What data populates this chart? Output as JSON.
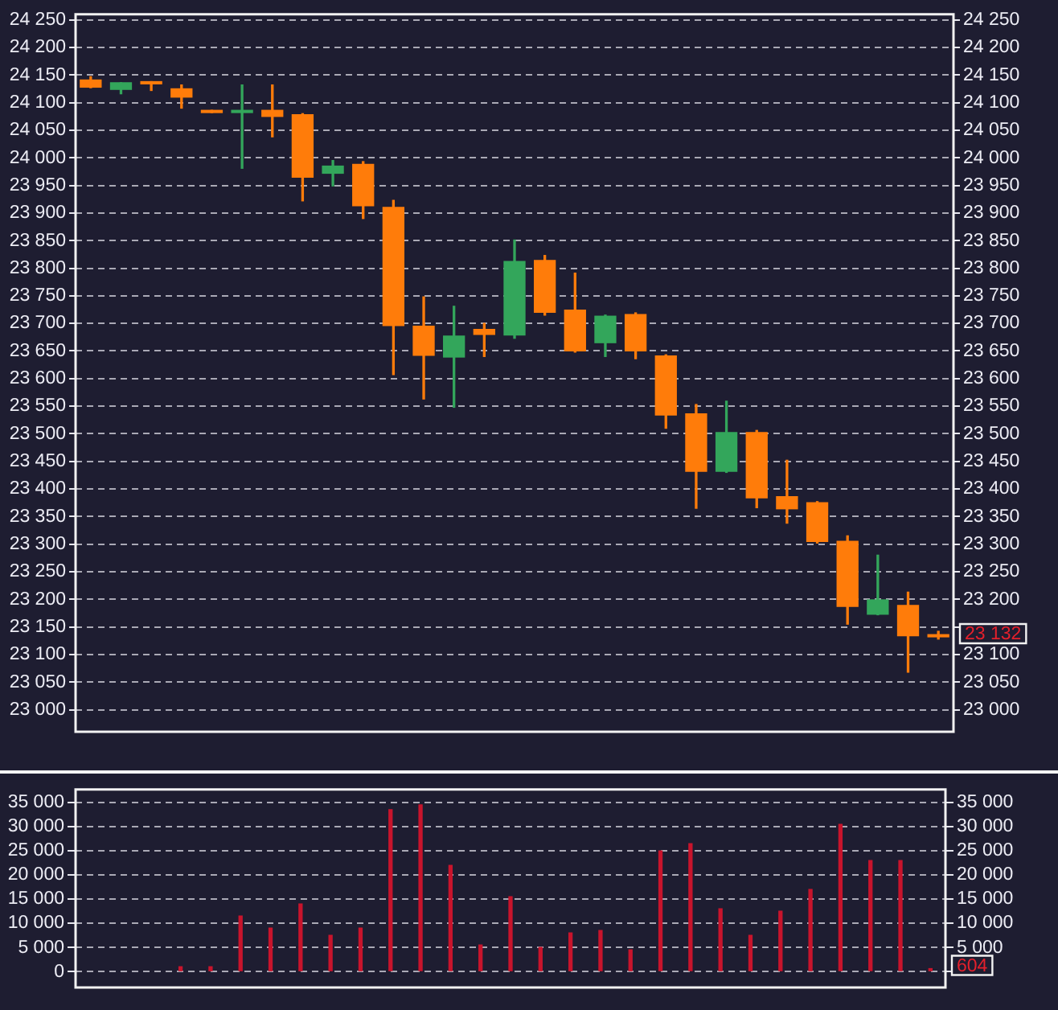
{
  "chart_data": [
    {
      "type": "candlestick",
      "categories": [
        null,
        null,
        null,
        null,
        null,
        null,
        null,
        null,
        null,
        null,
        null,
        null,
        null,
        null,
        null,
        null,
        null,
        null,
        null,
        null,
        null,
        null,
        null,
        null,
        null,
        null,
        null,
        null,
        null
      ],
      "ohlc": [
        [
          24141,
          24147,
          24127,
          24128
        ],
        [
          24124,
          24136,
          24116,
          24136
        ],
        [
          24138,
          24138,
          24122,
          24134
        ],
        [
          24125,
          24132,
          24090,
          24110
        ],
        [
          24086,
          24086,
          24082,
          24082
        ],
        [
          24082,
          24132,
          23981,
          24086
        ],
        [
          24086,
          24132,
          24038,
          24075
        ],
        [
          24078,
          24080,
          23922,
          23965
        ],
        [
          23972,
          23995,
          23949,
          23985
        ],
        [
          23988,
          23993,
          23890,
          23913
        ],
        [
          23910,
          23923,
          23607,
          23696
        ],
        [
          23695,
          23748,
          23563,
          23642
        ],
        [
          23639,
          23731,
          23548,
          23677
        ],
        [
          23689,
          23700,
          23640,
          23680
        ],
        [
          23679,
          23851,
          23673,
          23812
        ],
        [
          23814,
          23823,
          23715,
          23720
        ],
        [
          23724,
          23791,
          23648,
          23650
        ],
        [
          23665,
          23715,
          23640,
          23713
        ],
        [
          23716,
          23719,
          23636,
          23650
        ],
        [
          23641,
          23643,
          23510,
          23534
        ],
        [
          23536,
          23553,
          23365,
          23432
        ],
        [
          23432,
          23559,
          23430,
          23502
        ],
        [
          23502,
          23506,
          23366,
          23384
        ],
        [
          23386,
          23452,
          23338,
          23364
        ],
        [
          23375,
          23377,
          23302,
          23305
        ],
        [
          23305,
          23315,
          23155,
          23187
        ],
        [
          23173,
          23280,
          23172,
          23199
        ],
        [
          23189,
          23213,
          23068,
          23134
        ],
        [
          23136,
          23142,
          23128,
          23132
        ]
      ],
      "colors": [
        "#ff7c0a",
        "#33a65b",
        "#ff7c0a",
        "#ff7c0a",
        "#ff7c0a",
        "#33a65b",
        "#ff7c0a",
        "#ff7c0a",
        "#33a65b",
        "#ff7c0a",
        "#ff7c0a",
        "#ff7c0a",
        "#33a65b",
        "#ff7c0a",
        "#33a65b",
        "#ff7c0a",
        "#ff7c0a",
        "#33a65b",
        "#ff7c0a",
        "#ff7c0a",
        "#ff7c0a",
        "#33a65b",
        "#ff7c0a",
        "#ff7c0a",
        "#ff7c0a",
        "#ff7c0a",
        "#33a65b",
        "#ff7c0a",
        "#ff7c0a"
      ],
      "ylim": [
        22960,
        24260
      ],
      "yticks": [
        {
          "value": 23000,
          "label": "23 000"
        },
        {
          "value": 23050,
          "label": "23 050"
        },
        {
          "value": 23100,
          "label": "23 100"
        },
        {
          "value": 23150,
          "label": "23 150"
        },
        {
          "value": 23200,
          "label": "23 200"
        },
        {
          "value": 23250,
          "label": "23 250"
        },
        {
          "value": 23300,
          "label": "23 300"
        },
        {
          "value": 23350,
          "label": "23 350"
        },
        {
          "value": 23400,
          "label": "23 400"
        },
        {
          "value": 23450,
          "label": "23 450"
        },
        {
          "value": 23500,
          "label": "23 500"
        },
        {
          "value": 23550,
          "label": "23 550"
        },
        {
          "value": 23600,
          "label": "23 600"
        },
        {
          "value": 23650,
          "label": "23 650"
        },
        {
          "value": 23700,
          "label": "23 700"
        },
        {
          "value": 23750,
          "label": "23 750"
        },
        {
          "value": 23800,
          "label": "23 800"
        },
        {
          "value": 23850,
          "label": "23 850"
        },
        {
          "value": 23900,
          "label": "23 900"
        },
        {
          "value": 23950,
          "label": "23 950"
        },
        {
          "value": 24000,
          "label": "24 000"
        },
        {
          "value": 24050,
          "label": "24 050"
        },
        {
          "value": 24100,
          "label": "24 100"
        },
        {
          "value": 24150,
          "label": "24 150"
        },
        {
          "value": 24200,
          "label": "24 200"
        },
        {
          "value": 24250,
          "label": "24 250"
        }
      ],
      "y2lim": [
        22960,
        24260
      ],
      "y2ticks": [
        {
          "value": 23000,
          "label": "23 000"
        },
        {
          "value": 23050,
          "label": "23 050"
        },
        {
          "value": 23100,
          "label": "23 100"
        },
        {
          "value": 23150,
          "label": null
        },
        {
          "value": 23200,
          "label": "23 200"
        },
        {
          "value": 23250,
          "label": "23 250"
        },
        {
          "value": 23300,
          "label": "23 300"
        },
        {
          "value": 23350,
          "label": "23 350"
        },
        {
          "value": 23400,
          "label": "23 400"
        },
        {
          "value": 23450,
          "label": "23 450"
        },
        {
          "value": 23500,
          "label": "23 500"
        },
        {
          "value": 23550,
          "label": "23 550"
        },
        {
          "value": 23600,
          "label": "23 600"
        },
        {
          "value": 23650,
          "label": "23 650"
        },
        {
          "value": 23700,
          "label": "23 700"
        },
        {
          "value": 23750,
          "label": "23 750"
        },
        {
          "value": 23800,
          "label": "23 800"
        },
        {
          "value": 23850,
          "label": "23 850"
        },
        {
          "value": 23900,
          "label": "23 900"
        },
        {
          "value": 23950,
          "label": "23 950"
        },
        {
          "value": 24000,
          "label": "24 000"
        },
        {
          "value": 24050,
          "label": "24 050"
        },
        {
          "value": 24100,
          "label": "24 100"
        },
        {
          "value": 24150,
          "label": "24 150"
        },
        {
          "value": 24200,
          "label": "24 200"
        },
        {
          "value": 24250,
          "label": "24 250"
        }
      ],
      "grid": "y",
      "tick_labels": "y",
      "annotations": [
        "23 132"
      ]
    },
    {
      "type": "bar",
      "categories": [
        null,
        null,
        null,
        null,
        null,
        null,
        null,
        null,
        null,
        null,
        null,
        null,
        null,
        null,
        null,
        null,
        null,
        null,
        null,
        null,
        null,
        null,
        null,
        null,
        null,
        null,
        null,
        null,
        null
      ],
      "values": [
        null,
        null,
        null,
        1000,
        1000,
        11500,
        9000,
        14000,
        7500,
        9000,
        33500,
        34500,
        22000,
        5500,
        15500,
        5000,
        8000,
        8500,
        4500,
        25000,
        26500,
        13000,
        7500,
        12500,
        17000,
        30500,
        23000,
        23000,
        604
      ],
      "color": "#c8142c",
      "ylim": [
        -3300,
        37700
      ],
      "yticks": [
        0,
        {
          "value": 5000,
          "label": "5 000"
        },
        {
          "value": 10000,
          "label": "10 000"
        },
        {
          "value": 15000,
          "label": "15 000"
        },
        {
          "value": 20000,
          "label": "20 000"
        },
        {
          "value": 25000,
          "label": "25 000"
        },
        {
          "value": 30000,
          "label": "30 000"
        },
        {
          "value": 35000,
          "label": "35 000"
        }
      ],
      "y2lim": [
        -3300,
        37700
      ],
      "y2ticks": [
        {
          "value": 0,
          "label": null
        },
        {
          "value": 5000,
          "label": "5 000"
        },
        {
          "value": 10000,
          "label": "10 000"
        },
        {
          "value": 15000,
          "label": "15 000"
        },
        {
          "value": 20000,
          "label": "20 000"
        },
        {
          "value": 25000,
          "label": "25 000"
        },
        {
          "value": 30000,
          "label": "30 000"
        },
        {
          "value": 35000,
          "label": "35 000"
        }
      ],
      "grid": "y",
      "tick_labels": "y",
      "annotations": [
        "604"
      ]
    }
  ]
}
